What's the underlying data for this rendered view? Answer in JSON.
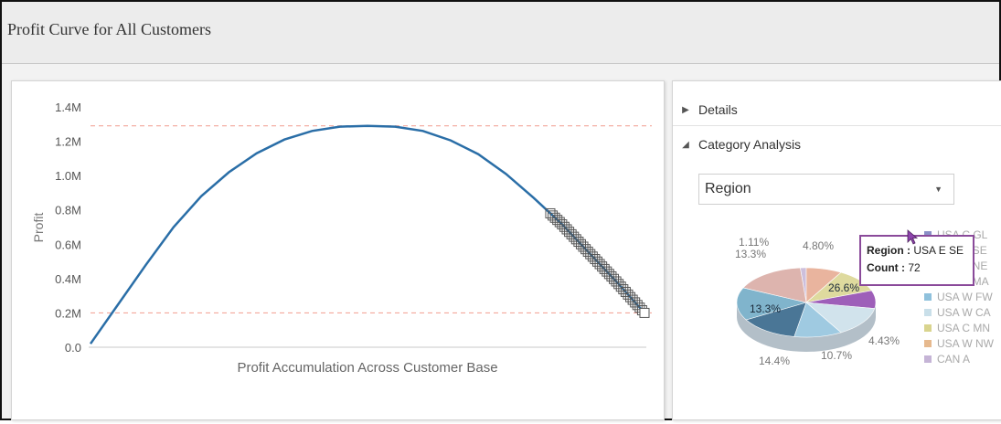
{
  "page": {
    "title": "Profit Curve for All Customers"
  },
  "chart_data": {
    "type": "line",
    "title": "",
    "xlabel": "Profit Accumulation Across Customer Base",
    "ylabel": "Profit",
    "y_ticks": [
      "0.0",
      "0.2M",
      "0.4M",
      "0.6M",
      "0.8M",
      "1.0M",
      "1.2M",
      "1.4M"
    ],
    "ylim": [
      0,
      1400000
    ],
    "x": [
      0,
      0.05,
      0.1,
      0.15,
      0.2,
      0.25,
      0.3,
      0.35,
      0.4,
      0.45,
      0.5,
      0.55,
      0.6,
      0.65,
      0.7,
      0.75,
      0.8,
      0.85,
      0.9,
      0.95,
      1.0
    ],
    "series": [
      {
        "values": [
          20000,
          250000,
          480000,
          700000,
          880000,
          1020000,
          1130000,
          1210000,
          1260000,
          1285000,
          1290000,
          1285000,
          1260000,
          1205000,
          1125000,
          1010000,
          870000,
          720000,
          550000,
          380000,
          200000
        ]
      }
    ],
    "reference_lines": [
      1290000,
      200000
    ],
    "highlight_from_x": 0.83,
    "colors": {
      "line": "#2a6ea7",
      "reference": "#f3a79b",
      "highlight": "#555555"
    }
  },
  "details": {
    "label": "Details"
  },
  "category": {
    "label": "Category Analysis",
    "selected": "Region"
  },
  "pie": {
    "labels": [
      {
        "text": "1.11%"
      },
      {
        "text": "13.3%"
      },
      {
        "text": "4.80%"
      },
      {
        "text": "26.6%"
      },
      {
        "text": "13.3%"
      },
      {
        "text": "4.43%"
      },
      {
        "text": "10.7%"
      },
      {
        "text": "14.4%"
      }
    ],
    "legend": [
      {
        "text": "USA C GL",
        "color": "#8a8fc6"
      },
      {
        "text": "USA E SE",
        "color": "#8e44ad"
      },
      {
        "text": "USA E NE",
        "color": "#cfe0ea"
      },
      {
        "text": "USA E MA",
        "color": "#5a8a9a"
      },
      {
        "text": "USA W FW",
        "color": "#8fc1dc"
      },
      {
        "text": "USA W CA",
        "color": "#c9dfe9"
      },
      {
        "text": "USA C MN",
        "color": "#d9d48e"
      },
      {
        "text": "USA W NW",
        "color": "#e6b98e"
      },
      {
        "text": "CAN A",
        "color": "#c5b4d6"
      }
    ]
  },
  "tooltip": {
    "region_label": "Region :",
    "region_value": "USA E SE",
    "count_label": "Count :",
    "count_value": "72"
  }
}
